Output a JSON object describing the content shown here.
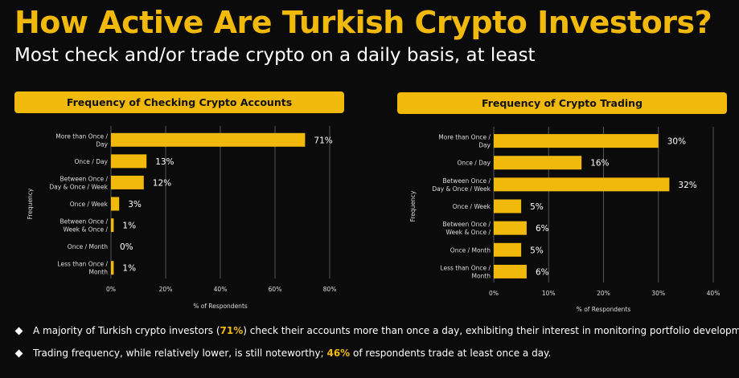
{
  "header": {
    "title": "How Active Are Turkish Crypto Investors?",
    "subtitle": "Most check and/or trade crypto on a daily basis, at least"
  },
  "colors": {
    "accent": "#f0b90b",
    "background": "#0b0b0b",
    "grid": "#555555"
  },
  "chart_data": [
    {
      "type": "bar",
      "orientation": "horizontal",
      "title": "Frequency of Checking Crypto Accounts",
      "xlabel": "% of Respondents",
      "ylabel": "Frequency",
      "categories": [
        [
          "More than Once /",
          "Day"
        ],
        [
          "Once / Day"
        ],
        [
          "Between Once /",
          "Day & Once / Week"
        ],
        [
          "Once / Week"
        ],
        [
          "Between Once /",
          "Week & Once /"
        ],
        [
          "Once / Month"
        ],
        [
          "Less than Once /",
          "Month"
        ]
      ],
      "values": [
        71,
        13,
        12,
        3,
        1,
        0,
        1
      ],
      "value_labels": [
        "71%",
        "13%",
        "12%",
        "3%",
        "1%",
        "0%",
        "1%"
      ],
      "xlim": [
        0,
        80
      ],
      "ticks": [
        0,
        20,
        40,
        60,
        80
      ],
      "tick_labels": [
        "0%",
        "20%",
        "40%",
        "60%",
        "80%"
      ],
      "grid": true
    },
    {
      "type": "bar",
      "orientation": "horizontal",
      "title": "Frequency of Crypto Trading",
      "xlabel": "% of Respondents",
      "ylabel": "Frequency",
      "categories": [
        [
          "More than Once /",
          "Day"
        ],
        [
          "Once / Day"
        ],
        [
          "Between Once /",
          "Day & Once / Week"
        ],
        [
          "Once / Week"
        ],
        [
          "Between Once /",
          "Week & Once /"
        ],
        [
          "Once / Month"
        ],
        [
          "Less than Once /",
          "Month"
        ]
      ],
      "values": [
        30,
        16,
        32,
        5,
        6,
        5,
        6
      ],
      "value_labels": [
        "30%",
        "16%",
        "32%",
        "5%",
        "6%",
        "5%",
        "6%"
      ],
      "xlim": [
        0,
        40
      ],
      "ticks": [
        0,
        10,
        20,
        30,
        40
      ],
      "tick_labels": [
        "0%",
        "10%",
        "20%",
        "30%",
        "40%"
      ],
      "grid": true
    }
  ],
  "bullets": [
    {
      "before": "A majority of Turkish crypto investors (",
      "highlight": "71%",
      "after": ") check their accounts more than once a day, exhibiting their interest in monitoring portfolio developments."
    },
    {
      "before": "Trading frequency, while relatively lower, is still noteworthy; ",
      "highlight": "46%",
      "after": " of respondents trade at least once a day."
    }
  ]
}
